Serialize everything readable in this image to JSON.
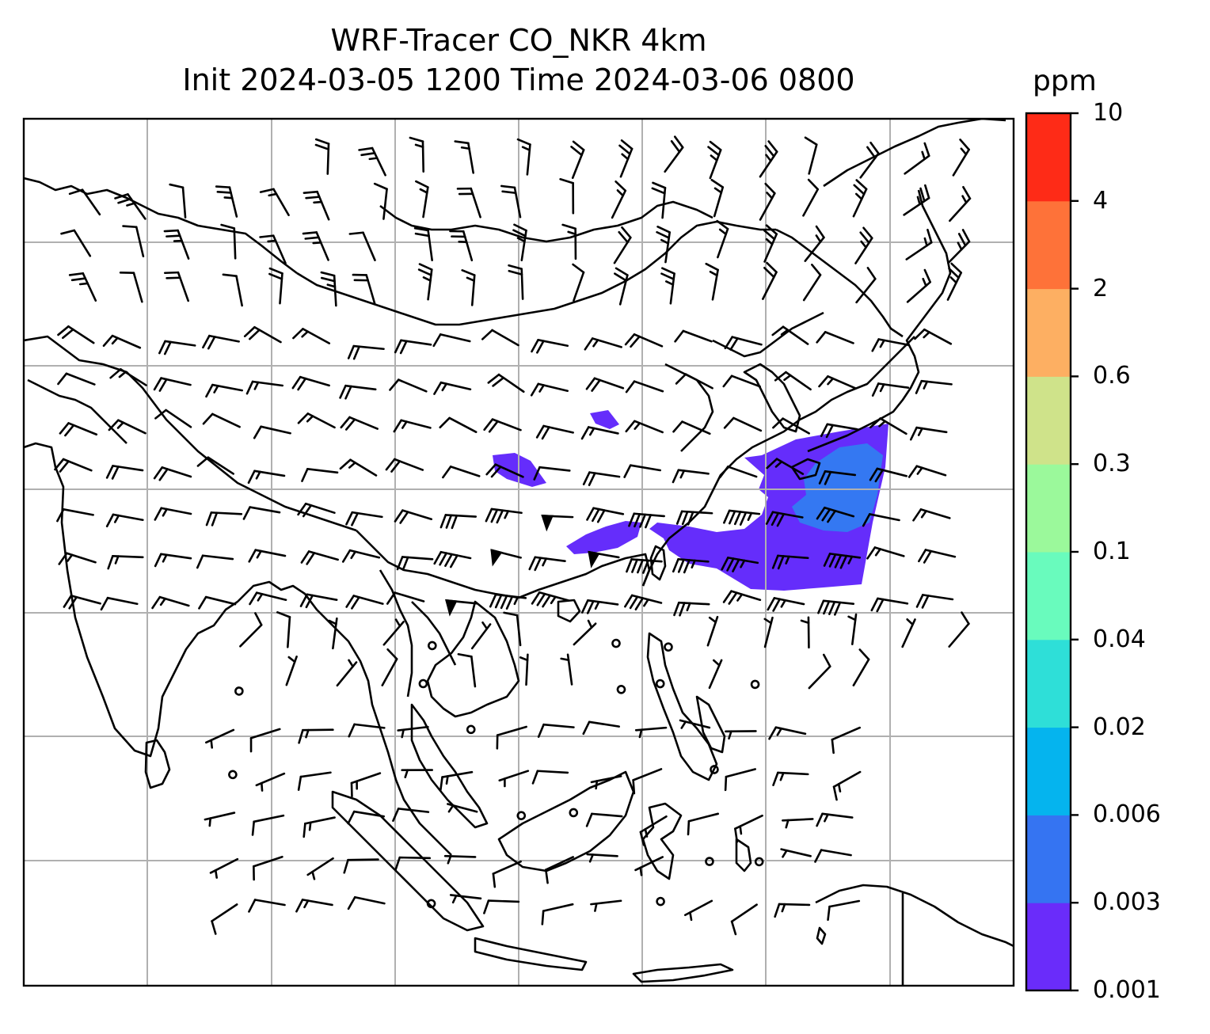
{
  "title": {
    "line1": "WRF-Tracer CO_NKR 4km",
    "line2": "Init 2024-03-05 1200 Time 2024-03-06 0800"
  },
  "colorbar": {
    "unit": "ppm",
    "levels": [
      "0.001",
      "0.003",
      "0.006",
      "0.02",
      "0.04",
      "0.1",
      "0.3",
      "0.6",
      "2",
      "4",
      "10"
    ],
    "colors": [
      "#6a2cfa",
      "#3574f2",
      "#05b4ee",
      "#2edfd8",
      "#69fbbd",
      "#9bf99b",
      "#cfe38a",
      "#fdaf62",
      "#fe7239",
      "#fe2b17"
    ]
  },
  "map": {
    "gridlines": true,
    "tracer_fill_colors": [
      "#652dfb",
      "#3478f2"
    ],
    "features": [
      "coastlines",
      "country-borders",
      "wind-barbs",
      "tracer-plume"
    ]
  }
}
